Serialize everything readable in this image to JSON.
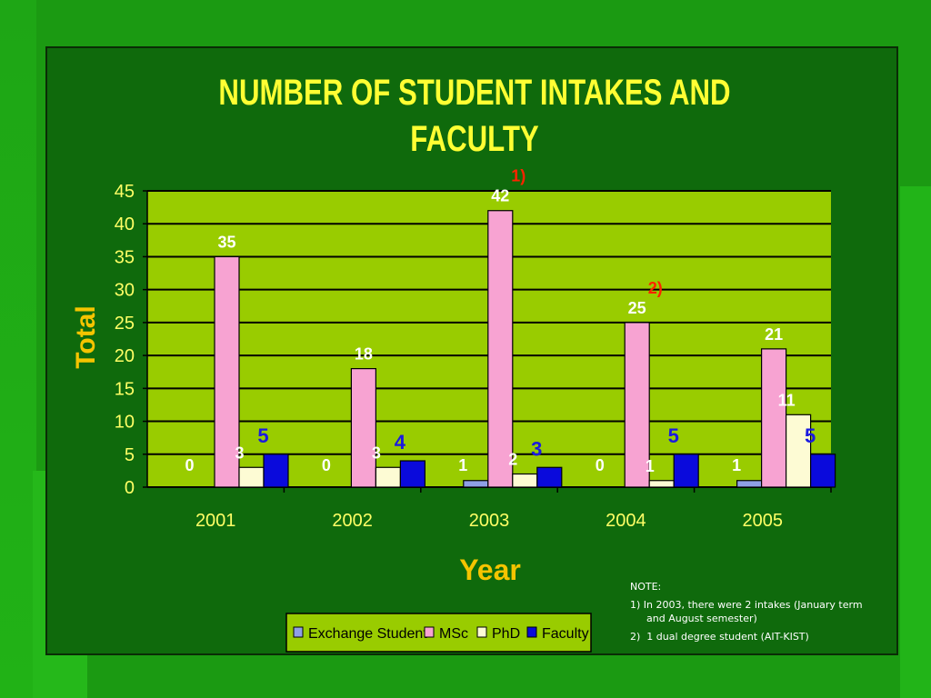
{
  "chart_data": {
    "type": "bar",
    "title_lines": [
      "NUMBER OF STUDENT INTAKES AND",
      "FACULTY"
    ],
    "xlabel": "Year",
    "ylabel": "Total",
    "categories": [
      "2001",
      "2002",
      "2003",
      "2004",
      "2005"
    ],
    "ylim": [
      0,
      45
    ],
    "yticks": [
      "0",
      "5",
      "10",
      "15",
      "20",
      "25",
      "30",
      "35",
      "40",
      "45"
    ],
    "grid": true,
    "legend_position": "bottom",
    "series": [
      {
        "name": "Exchange Student",
        "color": "#8f9fe6",
        "values": [
          0,
          0,
          1,
          0,
          1
        ],
        "labels": [
          "0",
          "0",
          "1",
          "0",
          "1"
        ]
      },
      {
        "name": "MSc",
        "color": "#f7a3d2",
        "values": [
          35,
          18,
          42,
          25,
          21
        ],
        "labels": [
          "35",
          "18",
          "42",
          "25",
          "21"
        ]
      },
      {
        "name": "PhD",
        "color": "#fdfbd4",
        "values": [
          3,
          3,
          2,
          1,
          11
        ],
        "labels": [
          "3",
          "3",
          "2",
          "1",
          "11"
        ]
      },
      {
        "name": "Faculty",
        "color": "#0a0adc",
        "values": [
          5,
          4,
          3,
          5,
          5
        ],
        "labels": [
          "5",
          "4",
          "3",
          "5",
          "5"
        ]
      }
    ],
    "annotations": [
      {
        "text": "1)",
        "category": "2003"
      },
      {
        "text": "2)",
        "category": "2004"
      }
    ],
    "colors": {
      "plot_bg": "#99cc00",
      "title": "#ffff33",
      "axis_title": "#f5c400",
      "tick_label": "#ffff66",
      "annotation": "#ff2200"
    }
  },
  "note": {
    "heading": "NOTE:",
    "items": [
      {
        "first": "1) In 2003, there were 2 intakes (January term",
        "second": "and August semester)"
      },
      {
        "first": "2)  1 dual degree student (AIT-KIST)"
      }
    ]
  }
}
